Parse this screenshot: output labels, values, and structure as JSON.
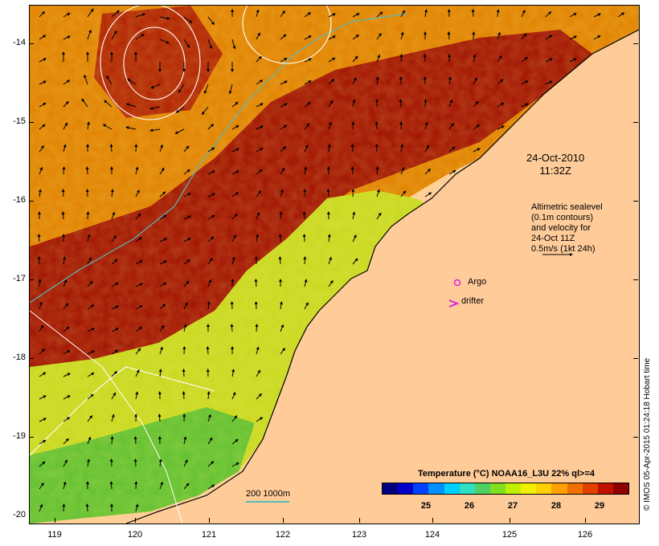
{
  "axes": {
    "y_ticks": [
      "-14",
      "-15",
      "-16",
      "-17",
      "-18",
      "-19",
      "-20"
    ],
    "x_ticks": [
      "119",
      "120",
      "121",
      "122",
      "123",
      "124",
      "125",
      "126"
    ]
  },
  "annotations": {
    "date": "24-Oct-2010",
    "time": "11:32Z",
    "altimetry": [
      "Altimetric sealevel",
      "(0.1m contours)",
      "and velocity for",
      "24-Oct 11Z",
      "0.5m/s (1kt 24h)"
    ],
    "argo_label": "Argo",
    "drifter_label": "drifter",
    "scale_label": "200  1000m"
  },
  "colorbar": {
    "title": "Temperature (°C) NOAA16_L3U 22% ql>=4",
    "ticks": [
      "25",
      "26",
      "27",
      "28",
      "29"
    ],
    "colors": [
      "#000080",
      "#0000c8",
      "#0040ff",
      "#0090ff",
      "#00d0ff",
      "#30e0c0",
      "#50d060",
      "#80e020",
      "#c0f000",
      "#f0f000",
      "#ffd000",
      "#ffa000",
      "#f07000",
      "#e04000",
      "#c01000",
      "#900000"
    ]
  },
  "credit": "© IMOS 05-Apr-2015 01:24:18 Hobart time",
  "colors": {
    "land": "#ffcc99",
    "ocean_warm": "#a01000",
    "ocean_mid": "#e08000",
    "ocean_cool": "#b0e020",
    "contour": "#ffffff",
    "isobath": "#55bbbb",
    "argo_marker": "#e020e0"
  }
}
